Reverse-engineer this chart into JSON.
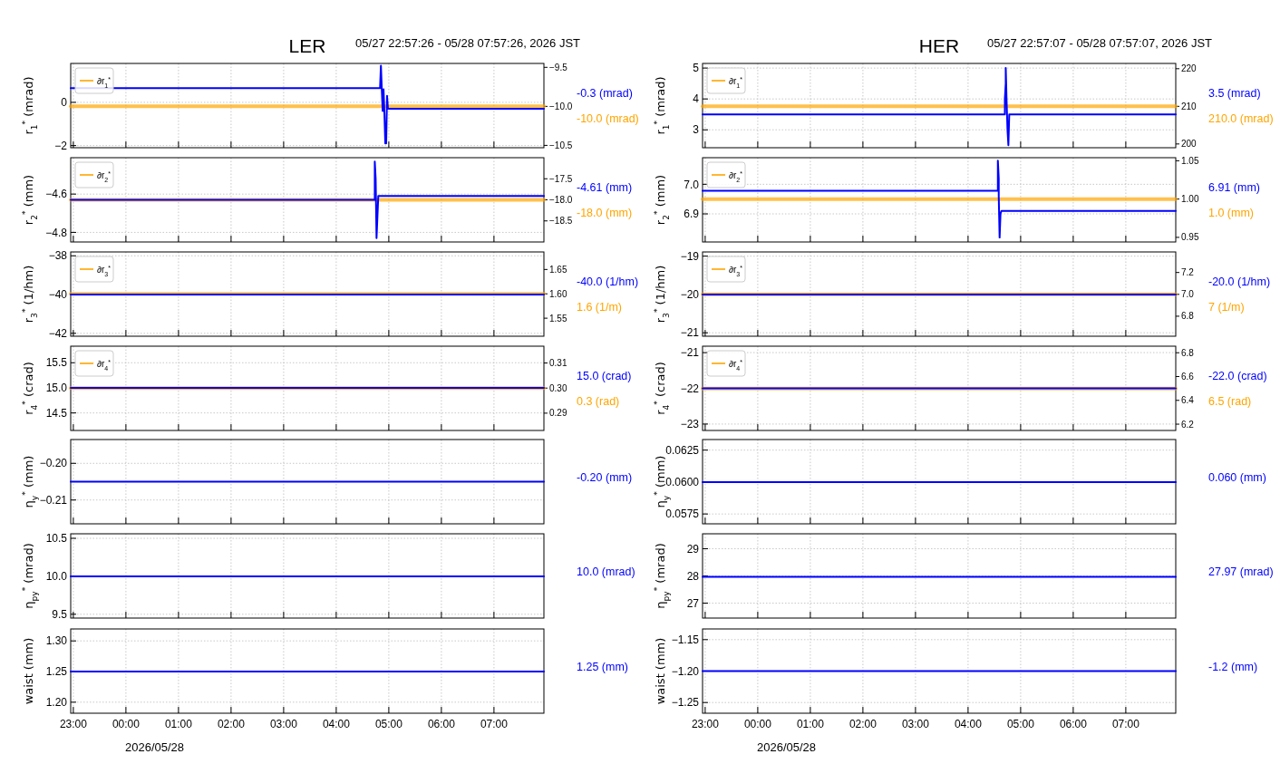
{
  "chart_data": [
    {
      "type": "line",
      "title": "LER",
      "subtitle": "05/27 22:57:26 - 05/28 07:57:26, 2026 JST",
      "ylabel": "r$_{1}$$^{*}$ (mrad)",
      "grid": true,
      "legend": "top left",
      "tick_labels": "y",
      "xlim": [
        "2026-05-27T22:57",
        "2026-05-28T07:57"
      ],
      "xticks": [
        {
          "value": "2026-05-27T23:00",
          "label": null
        },
        {
          "value": "2026-05-28T00:00",
          "label": null
        },
        {
          "value": "2026-05-28T01:00",
          "label": null
        },
        {
          "value": "2026-05-28T02:00",
          "label": null
        },
        {
          "value": "2026-05-28T03:00",
          "label": null
        },
        {
          "value": "2026-05-28T04:00",
          "label": null
        },
        {
          "value": "2026-05-28T05:00",
          "label": null
        },
        {
          "value": "2026-05-28T06:00",
          "label": null
        },
        {
          "value": "2026-05-28T07:00",
          "label": null
        }
      ],
      "ylim": [
        -2.1,
        1.8
      ],
      "yticks": [
        {
          "value": -2,
          "label": "−2"
        },
        {
          "value": 0,
          "label": "0"
        }
      ],
      "y2lim": [
        -10.53,
        -9.45
      ],
      "y2ticks": [
        {
          "value": -9.5,
          "label": "−9.5"
        },
        {
          "value": -10,
          "label": "−10.0"
        },
        {
          "value": -10.5,
          "label": "−10.5"
        }
      ],
      "series": [
        {
          "color": "#0000ff",
          "x": [
            "2026-05-27T22:57",
            "2026-05-28T04:50",
            "2026-05-28T04:51",
            "2026-05-28T04:52",
            "2026-05-28T04:53",
            "2026-05-28T04:54",
            "2026-05-28T04:55",
            "2026-05-28T04:56",
            "2026-05-28T04:57",
            "2026-05-28T04:58",
            "2026-05-28T04:59",
            "2026-05-28T07:57"
          ],
          "values": [
            0.66,
            0.66,
            1.7,
            0.6,
            -0.4,
            0.6,
            -0.5,
            -1.9,
            -1.9,
            0.3,
            -0.3,
            -0.3
          ]
        },
        {
          "name": "∂r$_{1}$$^{*}$",
          "color": "#ffa500",
          "axis": "y2",
          "x": [
            "2026-05-27T22:57",
            "2026-05-28T07:57"
          ],
          "values": [
            -10.0,
            -10.0
          ]
        }
      ],
      "annotations": [
        "-0.3 (mrad)",
        "-10.0 (mrad)"
      ]
    },
    {
      "type": "line",
      "ylabel": "r$_{2}$$^{*}$ (mm)",
      "grid": true,
      "legend": "top left",
      "tick_labels": "y",
      "xlim": [
        "2026-05-27T22:57",
        "2026-05-28T07:57"
      ],
      "xticks": [
        {
          "value": "2026-05-27T23:00",
          "label": null
        },
        {
          "value": "2026-05-28T00:00",
          "label": null
        },
        {
          "value": "2026-05-28T01:00",
          "label": null
        },
        {
          "value": "2026-05-28T02:00",
          "label": null
        },
        {
          "value": "2026-05-28T03:00",
          "label": null
        },
        {
          "value": "2026-05-28T04:00",
          "label": null
        },
        {
          "value": "2026-05-28T05:00",
          "label": null
        },
        {
          "value": "2026-05-28T06:00",
          "label": null
        },
        {
          "value": "2026-05-28T07:00",
          "label": null
        }
      ],
      "ylim": [
        -4.85,
        -4.41
      ],
      "yticks": [
        {
          "value": -4.8,
          "label": "−4.8"
        },
        {
          "value": -4.6,
          "label": "−4.6"
        }
      ],
      "y2lim": [
        -19.0,
        -17.0
      ],
      "y2ticks": [
        {
          "value": -17.5,
          "label": "−17.5"
        },
        {
          "value": -18,
          "label": "−18.0"
        },
        {
          "value": -18.5,
          "label": "−18.5"
        }
      ],
      "series": [
        {
          "color": "#0000ff",
          "x": [
            "2026-05-27T22:57",
            "2026-05-28T04:44",
            "2026-05-28T04:44",
            "2026-05-28T04:45",
            "2026-05-28T04:46",
            "2026-05-28T04:47",
            "2026-05-28T04:48",
            "2026-05-28T07:57"
          ],
          "values": [
            -4.63,
            -4.63,
            -4.43,
            -4.52,
            -4.83,
            -4.72,
            -4.61,
            -4.61
          ]
        },
        {
          "name": "∂r$_{2}$$^{*}$",
          "color": "#ffa500",
          "axis": "y2",
          "x": [
            "2026-05-27T22:57",
            "2026-05-28T07:57"
          ],
          "values": [
            -18.0,
            -18.0
          ]
        }
      ],
      "annotations": [
        "-4.61 (mm)",
        "-18.0 (mm)"
      ]
    },
    {
      "type": "line",
      "ylabel": "r$_{3}$$^{*}$ (1/hm)",
      "grid": true,
      "legend": "top left",
      "tick_labels": "y",
      "xlim": [
        "2026-05-27T22:57",
        "2026-05-28T07:57"
      ],
      "xticks": [
        {
          "value": "2026-05-27T23:00",
          "label": null
        },
        {
          "value": "2026-05-28T00:00",
          "label": null
        },
        {
          "value": "2026-05-28T01:00",
          "label": null
        },
        {
          "value": "2026-05-28T02:00",
          "label": null
        },
        {
          "value": "2026-05-28T03:00",
          "label": null
        },
        {
          "value": "2026-05-28T04:00",
          "label": null
        },
        {
          "value": "2026-05-28T05:00",
          "label": null
        },
        {
          "value": "2026-05-28T06:00",
          "label": null
        },
        {
          "value": "2026-05-28T07:00",
          "label": null
        }
      ],
      "ylim": [
        -42.15,
        -37.8
      ],
      "yticks": [
        {
          "value": -42,
          "label": "−42"
        },
        {
          "value": -40,
          "label": "−40"
        },
        {
          "value": -38,
          "label": "−38"
        }
      ],
      "y2lim": [
        1.513,
        1.686
      ],
      "y2ticks": [
        {
          "value": 1.55,
          "label": "1.55"
        },
        {
          "value": 1.6,
          "label": "1.60"
        },
        {
          "value": 1.65,
          "label": "1.65"
        }
      ],
      "series": [
        {
          "color": "#0000ff",
          "x": [
            "2026-05-27T22:57",
            "2026-05-28T07:57"
          ],
          "values": [
            -40.0,
            -40.0
          ]
        },
        {
          "name": "∂r$_{3}$$^{*}$",
          "color": "#ffa500",
          "axis": "y2",
          "x": [
            "2026-05-27T22:57",
            "2026-05-28T07:57"
          ],
          "values": [
            1.6,
            1.6
          ]
        }
      ],
      "annotations": [
        "-40.0 (1/hm)",
        "1.6 (1/m)"
      ]
    },
    {
      "type": "line",
      "ylabel": "r$_{4}$$^{*}$ (crad)",
      "grid": true,
      "legend": "top left",
      "tick_labels": "y",
      "xlim": [
        "2026-05-27T22:57",
        "2026-05-28T07:57"
      ],
      "xticks": [
        {
          "value": "2026-05-27T23:00",
          "label": null
        },
        {
          "value": "2026-05-28T00:00",
          "label": null
        },
        {
          "value": "2026-05-28T01:00",
          "label": null
        },
        {
          "value": "2026-05-28T02:00",
          "label": null
        },
        {
          "value": "2026-05-28T03:00",
          "label": null
        },
        {
          "value": "2026-05-28T04:00",
          "label": null
        },
        {
          "value": "2026-05-28T05:00",
          "label": null
        },
        {
          "value": "2026-05-28T06:00",
          "label": null
        },
        {
          "value": "2026-05-28T07:00",
          "label": null
        }
      ],
      "ylim": [
        14.15,
        15.83
      ],
      "yticks": [
        {
          "value": 14.5,
          "label": "14.5"
        },
        {
          "value": 15,
          "label": "15.0"
        },
        {
          "value": 15.5,
          "label": "15.5"
        }
      ],
      "y2lim": [
        0.2831,
        0.3167
      ],
      "y2ticks": [
        {
          "value": 0.29,
          "label": "0.29"
        },
        {
          "value": 0.3,
          "label": "0.30"
        },
        {
          "value": 0.31,
          "label": "0.31"
        }
      ],
      "series": [
        {
          "color": "#0000ff",
          "x": [
            "2026-05-27T22:57",
            "2026-05-28T07:57"
          ],
          "values": [
            15.0,
            15.0
          ]
        },
        {
          "name": "∂r$_{4}$$^{*}$",
          "color": "#ffa500",
          "axis": "y2",
          "x": [
            "2026-05-27T22:57",
            "2026-05-28T07:57"
          ],
          "values": [
            0.3,
            0.3
          ]
        }
      ],
      "annotations": [
        "15.0 (crad)",
        "0.3 (rad)"
      ]
    },
    {
      "type": "line",
      "ylabel": "η$_{y}$$^{*}$ (mm)",
      "grid": true,
      "tick_labels": "y",
      "xlim": [
        "2026-05-27T22:57",
        "2026-05-28T07:57"
      ],
      "xticks": [
        {
          "value": "2026-05-27T23:00",
          "label": null
        },
        {
          "value": "2026-05-28T00:00",
          "label": null
        },
        {
          "value": "2026-05-28T01:00",
          "label": null
        },
        {
          "value": "2026-05-28T02:00",
          "label": null
        },
        {
          "value": "2026-05-28T03:00",
          "label": null
        },
        {
          "value": "2026-05-28T04:00",
          "label": null
        },
        {
          "value": "2026-05-28T05:00",
          "label": null
        },
        {
          "value": "2026-05-28T06:00",
          "label": null
        },
        {
          "value": "2026-05-28T07:00",
          "label": null
        }
      ],
      "ylim": [
        -0.2165,
        -0.1935
      ],
      "yticks": [
        {
          "value": -0.21,
          "label": "−0.21"
        },
        {
          "value": -0.2,
          "label": "−0.20"
        }
      ],
      "series": [
        {
          "color": "#0000ff",
          "x": [
            "2026-05-27T22:57",
            "2026-05-28T07:57"
          ],
          "values": [
            -0.205,
            -0.205
          ]
        }
      ],
      "annotations": [
        "-0.20 (mm)"
      ]
    },
    {
      "type": "line",
      "ylabel": "η$_{py}$$^{*}$ (mrad)",
      "grid": true,
      "tick_labels": "y",
      "xlim": [
        "2026-05-27T22:57",
        "2026-05-28T07:57"
      ],
      "xticks": [
        {
          "value": "2026-05-27T23:00",
          "label": null
        },
        {
          "value": "2026-05-28T00:00",
          "label": null
        },
        {
          "value": "2026-05-28T01:00",
          "label": null
        },
        {
          "value": "2026-05-28T02:00",
          "label": null
        },
        {
          "value": "2026-05-28T03:00",
          "label": null
        },
        {
          "value": "2026-05-28T04:00",
          "label": null
        },
        {
          "value": "2026-05-28T05:00",
          "label": null
        },
        {
          "value": "2026-05-28T06:00",
          "label": null
        },
        {
          "value": "2026-05-28T07:00",
          "label": null
        }
      ],
      "ylim": [
        9.45,
        10.56
      ],
      "yticks": [
        {
          "value": 9.5,
          "label": "9.5"
        },
        {
          "value": 10,
          "label": "10.0"
        },
        {
          "value": 10.5,
          "label": "10.5"
        }
      ],
      "series": [
        {
          "color": "#0000ff",
          "x": [
            "2026-05-27T22:57",
            "2026-05-28T07:57"
          ],
          "values": [
            10.0,
            10.0
          ]
        }
      ],
      "annotations": [
        "10.0 (mrad)"
      ]
    },
    {
      "type": "line",
      "ylabel": "waist (mm)",
      "xlabel": "2026/05/28",
      "grid": true,
      "xlim": [
        "2026-05-27T22:57",
        "2026-05-28T07:57"
      ],
      "xticks": [
        {
          "value": "2026-05-27T23:00",
          "label": "23:00"
        },
        {
          "value": "2026-05-28T00:00",
          "label": "00:00"
        },
        {
          "value": "2026-05-28T01:00",
          "label": "01:00"
        },
        {
          "value": "2026-05-28T02:00",
          "label": "02:00"
        },
        {
          "value": "2026-05-28T03:00",
          "label": "03:00"
        },
        {
          "value": "2026-05-28T04:00",
          "label": "04:00"
        },
        {
          "value": "2026-05-28T05:00",
          "label": "05:00"
        },
        {
          "value": "2026-05-28T06:00",
          "label": "06:00"
        },
        {
          "value": "2026-05-28T07:00",
          "label": "07:00"
        }
      ],
      "ylim": [
        1.182,
        1.3195
      ],
      "yticks": [
        {
          "value": 1.2,
          "label": "1.20"
        },
        {
          "value": 1.25,
          "label": "1.25"
        },
        {
          "value": 1.3,
          "label": "1.30"
        }
      ],
      "series": [
        {
          "color": "#0000ff",
          "x": [
            "2026-05-27T22:57",
            "2026-05-28T07:57"
          ],
          "values": [
            1.25,
            1.25
          ]
        }
      ],
      "annotations": [
        "1.25 (mm)"
      ]
    },
    {
      "type": "line",
      "title": "HER",
      "subtitle": "05/27 22:57:07 - 05/28 07:57:07, 2026 JST",
      "ylabel": "r$_{1}$$^{*}$ (mrad)",
      "grid": true,
      "legend": "top left",
      "tick_labels": "y",
      "xlim": [
        "2026-05-27T22:57",
        "2026-05-28T07:57"
      ],
      "xticks": [
        {
          "value": "2026-05-27T23:00",
          "label": null
        },
        {
          "value": "2026-05-28T00:00",
          "label": null
        },
        {
          "value": "2026-05-28T01:00",
          "label": null
        },
        {
          "value": "2026-05-28T02:00",
          "label": null
        },
        {
          "value": "2026-05-28T03:00",
          "label": null
        },
        {
          "value": "2026-05-28T04:00",
          "label": null
        },
        {
          "value": "2026-05-28T05:00",
          "label": null
        },
        {
          "value": "2026-05-28T06:00",
          "label": null
        },
        {
          "value": "2026-05-28T07:00",
          "label": null
        }
      ],
      "ylim": [
        2.42,
        5.15
      ],
      "yticks": [
        {
          "value": 3,
          "label": "3"
        },
        {
          "value": 4,
          "label": "4"
        },
        {
          "value": 5,
          "label": "5"
        }
      ],
      "y2lim": [
        199.0,
        221.4
      ],
      "y2ticks": [
        {
          "value": 200,
          "label": "200"
        },
        {
          "value": 210,
          "label": "210"
        },
        {
          "value": 220,
          "label": "220"
        }
      ],
      "series": [
        {
          "color": "#0000ff",
          "x": [
            "2026-05-27T22:57",
            "2026-05-28T04:42",
            "2026-05-28T04:42",
            "2026-05-28T04:43",
            "2026-05-28T04:43",
            "2026-05-28T04:44",
            "2026-05-28T04:45",
            "2026-05-28T04:46",
            "2026-05-28T04:47",
            "2026-05-28T07:57"
          ],
          "values": [
            3.5,
            3.5,
            4.0,
            4.5,
            5.0,
            3.9,
            3.0,
            2.5,
            3.5,
            3.5
          ]
        },
        {
          "name": "∂r$_{1}$$^{*}$",
          "color": "#ffa500",
          "axis": "y2",
          "x": [
            "2026-05-27T22:57",
            "2026-05-28T07:57"
          ],
          "values": [
            210.0,
            210.0
          ]
        }
      ],
      "annotations": [
        "3.5 (mrad)",
        "210.0 (mrad)"
      ]
    },
    {
      "type": "line",
      "ylabel": "r$_{2}$$^{*}$ (mm)",
      "grid": true,
      "legend": "top left",
      "tick_labels": "y",
      "xlim": [
        "2026-05-27T22:57",
        "2026-05-28T07:57"
      ],
      "xticks": [
        {
          "value": "2026-05-27T23:00",
          "label": null
        },
        {
          "value": "2026-05-28T00:00",
          "label": null
        },
        {
          "value": "2026-05-28T01:00",
          "label": null
        },
        {
          "value": "2026-05-28T02:00",
          "label": null
        },
        {
          "value": "2026-05-28T03:00",
          "label": null
        },
        {
          "value": "2026-05-28T04:00",
          "label": null
        },
        {
          "value": "2026-05-28T05:00",
          "label": null
        },
        {
          "value": "2026-05-28T06:00",
          "label": null
        },
        {
          "value": "2026-05-28T07:00",
          "label": null
        }
      ],
      "ylim": [
        6.805,
        7.09
      ],
      "yticks": [
        {
          "value": 6.9,
          "label": "6.9"
        },
        {
          "value": 7,
          "label": "7.0"
        }
      ],
      "y2lim": [
        0.944,
        1.054
      ],
      "y2ticks": [
        {
          "value": 0.95,
          "label": "0.95"
        },
        {
          "value": 1,
          "label": "1.00"
        },
        {
          "value": 1.05,
          "label": "1.05"
        }
      ],
      "series": [
        {
          "color": "#0000ff",
          "x": [
            "2026-05-27T22:57",
            "2026-05-28T04:34",
            "2026-05-28T04:34",
            "2026-05-28T04:35",
            "2026-05-28T04:35",
            "2026-05-28T04:36",
            "2026-05-28T04:37",
            "2026-05-28T04:38",
            "2026-05-28T07:57"
          ],
          "values": [
            6.978,
            6.978,
            7.08,
            7.02,
            6.96,
            6.82,
            6.9,
            6.91,
            6.91
          ]
        },
        {
          "name": "∂r$_{2}$$^{*}$",
          "color": "#ffa500",
          "axis": "y2",
          "x": [
            "2026-05-27T22:57",
            "2026-05-28T07:57"
          ],
          "values": [
            1.0,
            1.0
          ]
        }
      ],
      "annotations": [
        "6.91 (mm)",
        "1.0 (mm)"
      ]
    },
    {
      "type": "line",
      "ylabel": "r$_{3}$$^{*}$ (1/hm)",
      "grid": true,
      "legend": "top left",
      "tick_labels": "y",
      "xlim": [
        "2026-05-27T22:57",
        "2026-05-28T07:57"
      ],
      "xticks": [
        {
          "value": "2026-05-27T23:00",
          "label": null
        },
        {
          "value": "2026-05-28T00:00",
          "label": null
        },
        {
          "value": "2026-05-28T01:00",
          "label": null
        },
        {
          "value": "2026-05-28T02:00",
          "label": null
        },
        {
          "value": "2026-05-28T03:00",
          "label": null
        },
        {
          "value": "2026-05-28T04:00",
          "label": null
        },
        {
          "value": "2026-05-28T05:00",
          "label": null
        },
        {
          "value": "2026-05-28T06:00",
          "label": null
        },
        {
          "value": "2026-05-28T07:00",
          "label": null
        }
      ],
      "ylim": [
        -21.09,
        -18.89
      ],
      "yticks": [
        {
          "value": -21,
          "label": "−21"
        },
        {
          "value": -20,
          "label": "−20"
        },
        {
          "value": -19,
          "label": "−19"
        }
      ],
      "y2lim": [
        6.617,
        7.388
      ],
      "y2ticks": [
        {
          "value": 6.8,
          "label": "6.8"
        },
        {
          "value": 7,
          "label": "7.0"
        },
        {
          "value": 7.2,
          "label": "7.2"
        }
      ],
      "series": [
        {
          "color": "#0000ff",
          "x": [
            "2026-05-27T22:57",
            "2026-05-28T07:57"
          ],
          "values": [
            -20.0,
            -20.0
          ]
        },
        {
          "name": "∂r$_{3}$$^{*}$",
          "color": "#ffa500",
          "axis": "y2",
          "x": [
            "2026-05-27T22:57",
            "2026-05-28T07:57"
          ],
          "values": [
            7,
            7
          ]
        }
      ],
      "annotations": [
        "-20.0 (1/hm)",
        "7 (1/m)"
      ]
    },
    {
      "type": "line",
      "ylabel": "r$_{4}$$^{*}$ (crad)",
      "grid": true,
      "legend": "top left",
      "tick_labels": "y",
      "xlim": [
        "2026-05-27T22:57",
        "2026-05-28T07:57"
      ],
      "xticks": [
        {
          "value": "2026-05-27T23:00",
          "label": null
        },
        {
          "value": "2026-05-28T00:00",
          "label": null
        },
        {
          "value": "2026-05-28T01:00",
          "label": null
        },
        {
          "value": "2026-05-28T02:00",
          "label": null
        },
        {
          "value": "2026-05-28T03:00",
          "label": null
        },
        {
          "value": "2026-05-28T04:00",
          "label": null
        },
        {
          "value": "2026-05-28T05:00",
          "label": null
        },
        {
          "value": "2026-05-28T06:00",
          "label": null
        },
        {
          "value": "2026-05-28T07:00",
          "label": null
        }
      ],
      "ylim": [
        -23.18,
        -20.82
      ],
      "yticks": [
        {
          "value": -23,
          "label": "−23"
        },
        {
          "value": -22,
          "label": "−22"
        },
        {
          "value": -21,
          "label": "−21"
        }
      ],
      "y2lim": [
        6.147,
        6.855
      ],
      "y2ticks": [
        {
          "value": 6.2,
          "label": "6.2"
        },
        {
          "value": 6.4,
          "label": "6.4"
        },
        {
          "value": 6.6,
          "label": "6.6"
        },
        {
          "value": 6.8,
          "label": "6.8"
        }
      ],
      "series": [
        {
          "color": "#0000ff",
          "x": [
            "2026-05-27T22:57",
            "2026-05-28T07:57"
          ],
          "values": [
            -22.0,
            -22.0
          ]
        },
        {
          "name": "∂r$_{4}$$^{*}$",
          "color": "#ffa500",
          "axis": "y2",
          "x": [
            "2026-05-27T22:57",
            "2026-05-28T07:57"
          ],
          "values": [
            6.5,
            6.5
          ]
        }
      ],
      "annotations": [
        "-22.0 (crad)",
        "6.5 (rad)"
      ]
    },
    {
      "type": "line",
      "ylabel": "η$_{y}$$^{*}$ (mm)",
      "grid": true,
      "tick_labels": "y",
      "xlim": [
        "2026-05-27T22:57",
        "2026-05-28T07:57"
      ],
      "xticks": [
        {
          "value": "2026-05-27T23:00",
          "label": null
        },
        {
          "value": "2026-05-28T00:00",
          "label": null
        },
        {
          "value": "2026-05-28T01:00",
          "label": null
        },
        {
          "value": "2026-05-28T02:00",
          "label": null
        },
        {
          "value": "2026-05-28T03:00",
          "label": null
        },
        {
          "value": "2026-05-28T04:00",
          "label": null
        },
        {
          "value": "2026-05-28T05:00",
          "label": null
        },
        {
          "value": "2026-05-28T06:00",
          "label": null
        },
        {
          "value": "2026-05-28T07:00",
          "label": null
        }
      ],
      "ylim": [
        0.05673,
        0.06333
      ],
      "yticks": [
        {
          "value": 0.0575,
          "label": "0.0575"
        },
        {
          "value": 0.06,
          "label": "0.0600"
        },
        {
          "value": 0.0625,
          "label": "0.0625"
        }
      ],
      "series": [
        {
          "color": "#0000ff",
          "x": [
            "2026-05-27T22:57",
            "2026-05-28T07:57"
          ],
          "values": [
            0.06,
            0.06
          ]
        }
      ],
      "annotations": [
        "0.060 (mm)"
      ]
    },
    {
      "type": "line",
      "ylabel": "η$_{py}$$^{*}$ (mrad)",
      "grid": true,
      "tick_labels": "y",
      "xlim": [
        "2026-05-27T22:57",
        "2026-05-28T07:57"
      ],
      "xticks": [
        {
          "value": "2026-05-27T23:00",
          "label": null
        },
        {
          "value": "2026-05-28T00:00",
          "label": null
        },
        {
          "value": "2026-05-28T01:00",
          "label": null
        },
        {
          "value": "2026-05-28T02:00",
          "label": null
        },
        {
          "value": "2026-05-28T03:00",
          "label": null
        },
        {
          "value": "2026-05-28T04:00",
          "label": null
        },
        {
          "value": "2026-05-28T05:00",
          "label": null
        },
        {
          "value": "2026-05-28T06:00",
          "label": null
        },
        {
          "value": "2026-05-28T07:00",
          "label": null
        }
      ],
      "ylim": [
        26.45,
        29.55
      ],
      "yticks": [
        {
          "value": 27,
          "label": "27"
        },
        {
          "value": 28,
          "label": "28"
        },
        {
          "value": 29,
          "label": "29"
        }
      ],
      "series": [
        {
          "color": "#0000ff",
          "x": [
            "2026-05-27T22:57",
            "2026-05-28T07:57"
          ],
          "values": [
            27.97,
            27.97
          ]
        }
      ],
      "annotations": [
        "27.97 (mrad)"
      ]
    },
    {
      "type": "line",
      "ylabel": "waist (mm)",
      "xlabel": "2026/05/28",
      "grid": true,
      "xlim": [
        "2026-05-27T22:57",
        "2026-05-28T07:57"
      ],
      "xticks": [
        {
          "value": "2026-05-27T23:00",
          "label": "23:00"
        },
        {
          "value": "2026-05-28T00:00",
          "label": "00:00"
        },
        {
          "value": "2026-05-28T01:00",
          "label": "01:00"
        },
        {
          "value": "2026-05-28T02:00",
          "label": "02:00"
        },
        {
          "value": "2026-05-28T03:00",
          "label": "03:00"
        },
        {
          "value": "2026-05-28T04:00",
          "label": "04:00"
        },
        {
          "value": "2026-05-28T05:00",
          "label": "05:00"
        },
        {
          "value": "2026-05-28T06:00",
          "label": "06:00"
        },
        {
          "value": "2026-05-28T07:00",
          "label": "07:00"
        }
      ],
      "ylim": [
        -1.267,
        -1.133
      ],
      "yticks": [
        {
          "value": -1.25,
          "label": "−1.25"
        },
        {
          "value": -1.2,
          "label": "−1.20"
        },
        {
          "value": -1.15,
          "label": "−1.15"
        }
      ],
      "series": [
        {
          "color": "#0000ff",
          "x": [
            "2026-05-27T22:57",
            "2026-05-28T07:57"
          ],
          "values": [
            -1.2,
            -1.2
          ]
        }
      ],
      "annotations": [
        "-1.2 (mm)"
      ]
    }
  ]
}
